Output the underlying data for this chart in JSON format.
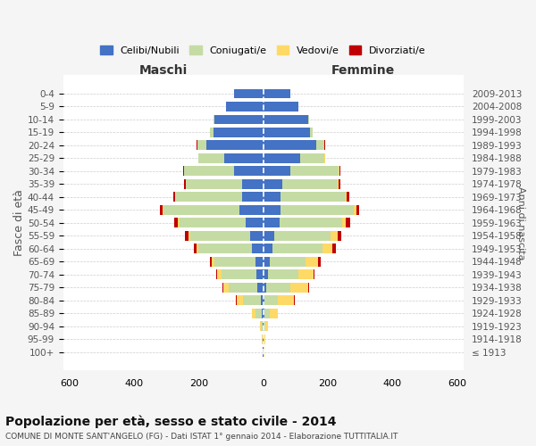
{
  "age_groups": [
    "100+",
    "95-99",
    "90-94",
    "85-89",
    "80-84",
    "75-79",
    "70-74",
    "65-69",
    "60-64",
    "55-59",
    "50-54",
    "45-49",
    "40-44",
    "35-39",
    "30-34",
    "25-29",
    "20-24",
    "15-19",
    "10-14",
    "5-9",
    "0-4"
  ],
  "birth_years": [
    "≤ 1913",
    "1914-1918",
    "1919-1923",
    "1924-1928",
    "1929-1933",
    "1934-1938",
    "1939-1943",
    "1944-1948",
    "1949-1953",
    "1954-1958",
    "1959-1963",
    "1964-1968",
    "1969-1973",
    "1974-1978",
    "1979-1983",
    "1984-1988",
    "1989-1993",
    "1994-1998",
    "1999-2003",
    "2004-2008",
    "2009-2013"
  ],
  "male": {
    "celibi": [
      1,
      1,
      2,
      5,
      8,
      18,
      20,
      25,
      35,
      40,
      55,
      75,
      65,
      65,
      90,
      120,
      175,
      155,
      150,
      115,
      90
    ],
    "coniugati": [
      1,
      2,
      5,
      20,
      55,
      90,
      110,
      125,
      165,
      185,
      205,
      235,
      205,
      175,
      155,
      80,
      30,
      10,
      5,
      0,
      0
    ],
    "vedovi": [
      0,
      1,
      3,
      10,
      20,
      15,
      12,
      10,
      8,
      8,
      5,
      3,
      2,
      1,
      1,
      0,
      0,
      0,
      0,
      0,
      0
    ],
    "divorziati": [
      0,
      0,
      0,
      1,
      2,
      3,
      4,
      5,
      8,
      10,
      10,
      8,
      7,
      5,
      3,
      2,
      1,
      0,
      0,
      0,
      0
    ]
  },
  "female": {
    "nubili": [
      1,
      1,
      2,
      5,
      5,
      10,
      15,
      20,
      30,
      35,
      50,
      55,
      55,
      60,
      85,
      115,
      165,
      145,
      140,
      110,
      85
    ],
    "coniugate": [
      1,
      2,
      5,
      15,
      40,
      75,
      95,
      110,
      155,
      175,
      195,
      225,
      200,
      170,
      150,
      75,
      25,
      8,
      3,
      0,
      0
    ],
    "vedove": [
      1,
      3,
      8,
      25,
      50,
      55,
      45,
      40,
      30,
      20,
      12,
      8,
      4,
      3,
      2,
      1,
      0,
      0,
      0,
      0,
      0
    ],
    "divorziate": [
      0,
      0,
      0,
      1,
      2,
      3,
      5,
      8,
      10,
      12,
      12,
      10,
      8,
      5,
      3,
      2,
      1,
      0,
      0,
      0,
      0
    ]
  },
  "colors": {
    "celibi_nubili": "#4472C4",
    "coniugati": "#C5DBA4",
    "vedovi": "#FFD966",
    "divorziati": "#C00000"
  },
  "xlim": 620,
  "title": "Popolazione per età, sesso e stato civile - 2014",
  "subtitle": "COMUNE DI MONTE SANT'ANGELO (FG) - Dati ISTAT 1° gennaio 2014 - Elaborazione TUTTITALIA.IT",
  "xlabel_left": "Maschi",
  "xlabel_right": "Femmine",
  "ylabel": "Fasce di età",
  "ylabel_right": "Anni di nascita",
  "bg_color": "#f5f5f5",
  "bar_bg": "#ffffff",
  "grid_color": "#cccccc"
}
